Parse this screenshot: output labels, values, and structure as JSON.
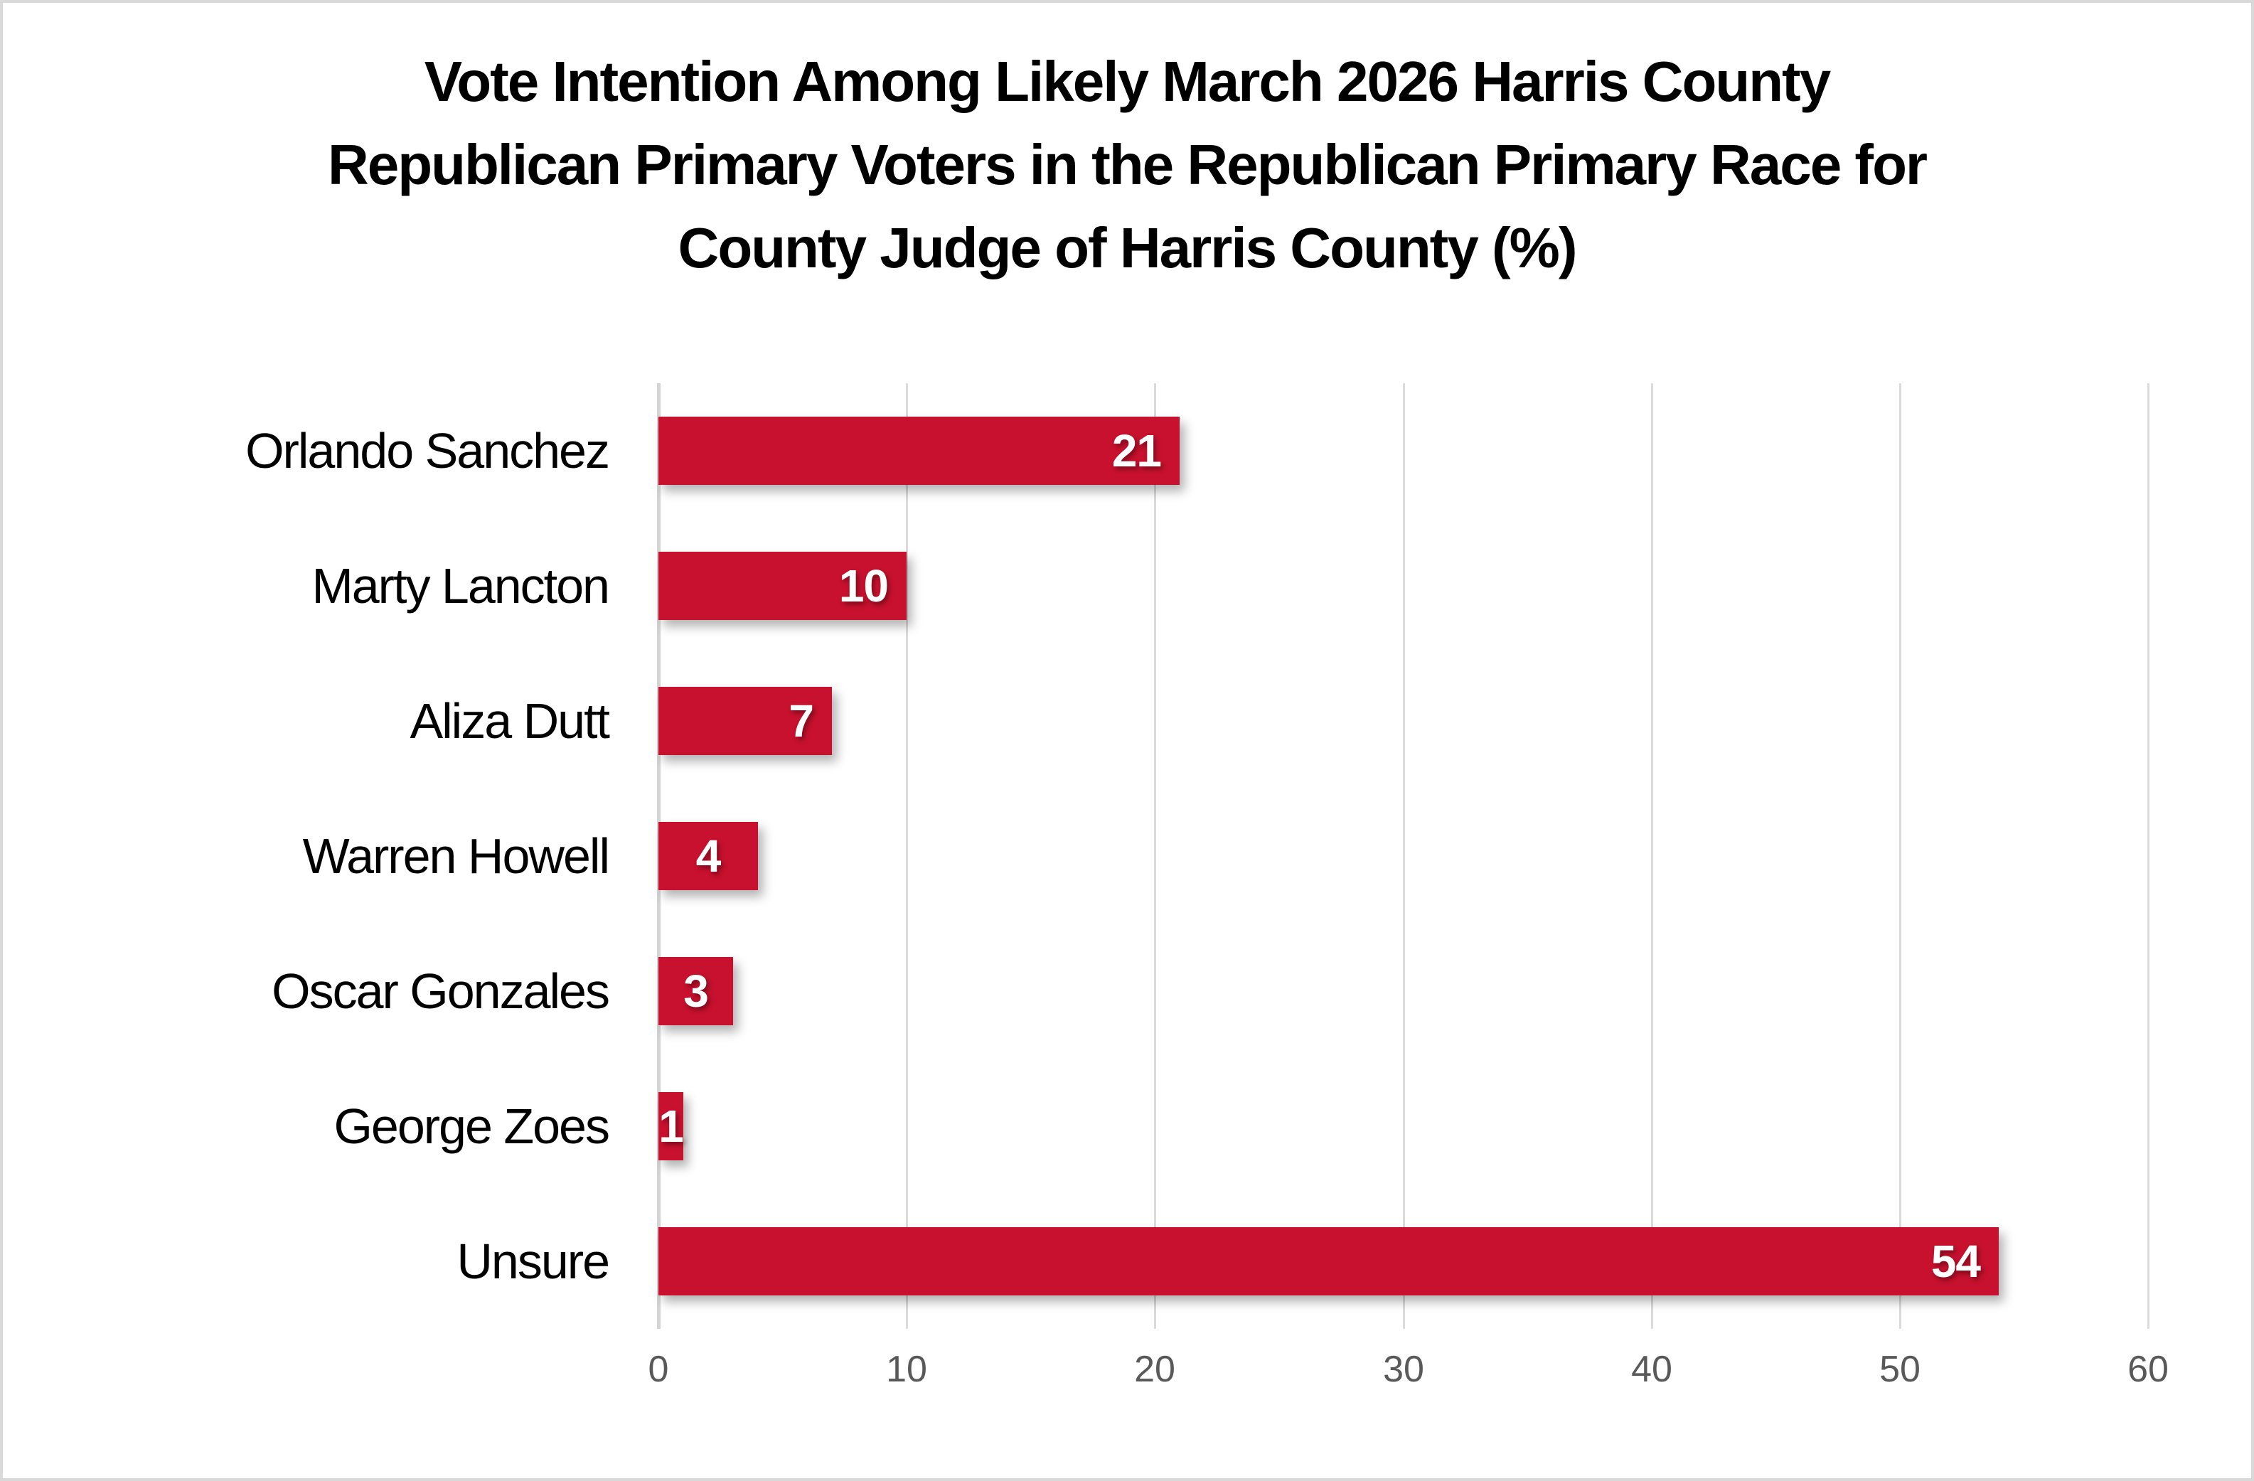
{
  "chart_data": {
    "type": "bar",
    "orientation": "horizontal",
    "title": "Vote Intention Among Likely March 2026 Harris County Republican Primary Voters in the Republican Primary Race for County Judge of Harris County (%)",
    "title_lines": [
      "Vote Intention Among Likely March 2026 Harris County",
      "Republican Primary Voters in the Republican Primary Race for",
      "County Judge of Harris County (%)"
    ],
    "categories": [
      "Orlando Sanchez",
      "Marty Lancton",
      "Aliza Dutt",
      "Warren Howell",
      "Oscar Gonzales",
      "George Zoes",
      "Unsure"
    ],
    "values": [
      21,
      10,
      7,
      4,
      3,
      1,
      54
    ],
    "xlabel": "",
    "ylabel": "",
    "xlim": [
      0,
      60
    ],
    "x_ticks": [
      0,
      10,
      20,
      30,
      40,
      50,
      60
    ],
    "grid": true,
    "legend_position": "none",
    "colors": {
      "bar": "#c7112e",
      "value_label": "#ffffff",
      "title_text": "#000000",
      "category_text": "#000000",
      "tick_text": "#595959",
      "gridline": "#dbdbdb",
      "axis_line": "#d4d4d4",
      "background": "#ffffff",
      "frame_border": "#d9d9d9"
    }
  }
}
